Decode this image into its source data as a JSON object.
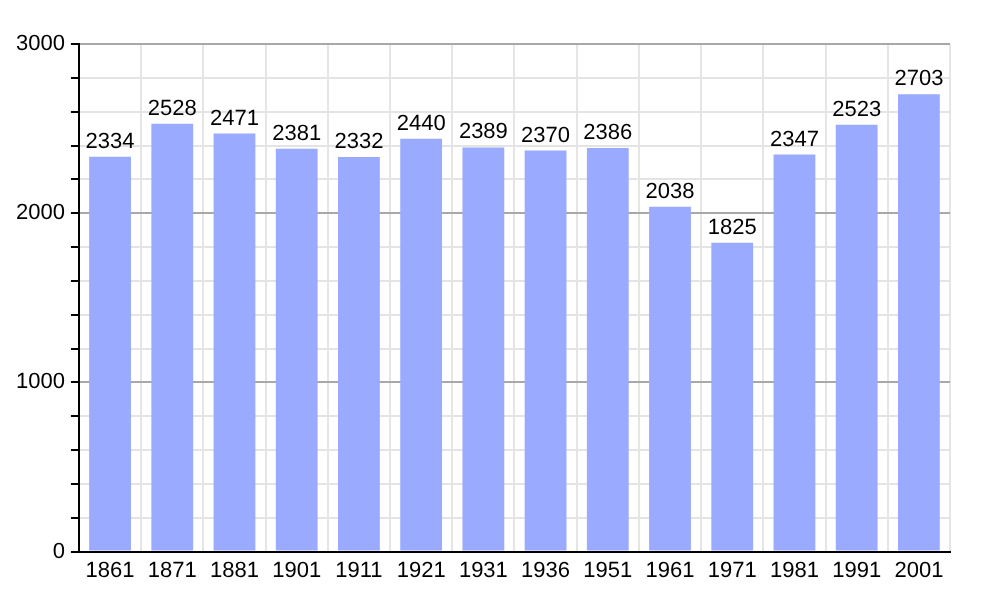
{
  "chart_data": {
    "type": "bar",
    "categories": [
      "1861",
      "1871",
      "1881",
      "1901",
      "1911",
      "1921",
      "1931",
      "1936",
      "1951",
      "1961",
      "1971",
      "1981",
      "1991",
      "2001"
    ],
    "values": [
      2334,
      2528,
      2471,
      2381,
      2332,
      2440,
      2389,
      2370,
      2386,
      2038,
      1825,
      2347,
      2523,
      2703
    ],
    "color": "#99aaff",
    "ylim": [
      0,
      3000
    ],
    "yticks": [
      0,
      {
        "value": 200,
        "label": null
      },
      {
        "value": 400,
        "label": null
      },
      {
        "value": 600,
        "label": null
      },
      {
        "value": 800,
        "label": null
      },
      1000,
      {
        "value": 1200,
        "label": null
      },
      {
        "value": 1400,
        "label": null
      },
      {
        "value": 1600,
        "label": null
      },
      {
        "value": 1800,
        "label": null
      },
      2000,
      {
        "value": 2200,
        "label": null
      },
      {
        "value": 2400,
        "label": null
      },
      {
        "value": 2600,
        "label": null
      },
      {
        "value": 2800,
        "label": null
      },
      3000
    ],
    "grid": true,
    "data_labels": true
  }
}
